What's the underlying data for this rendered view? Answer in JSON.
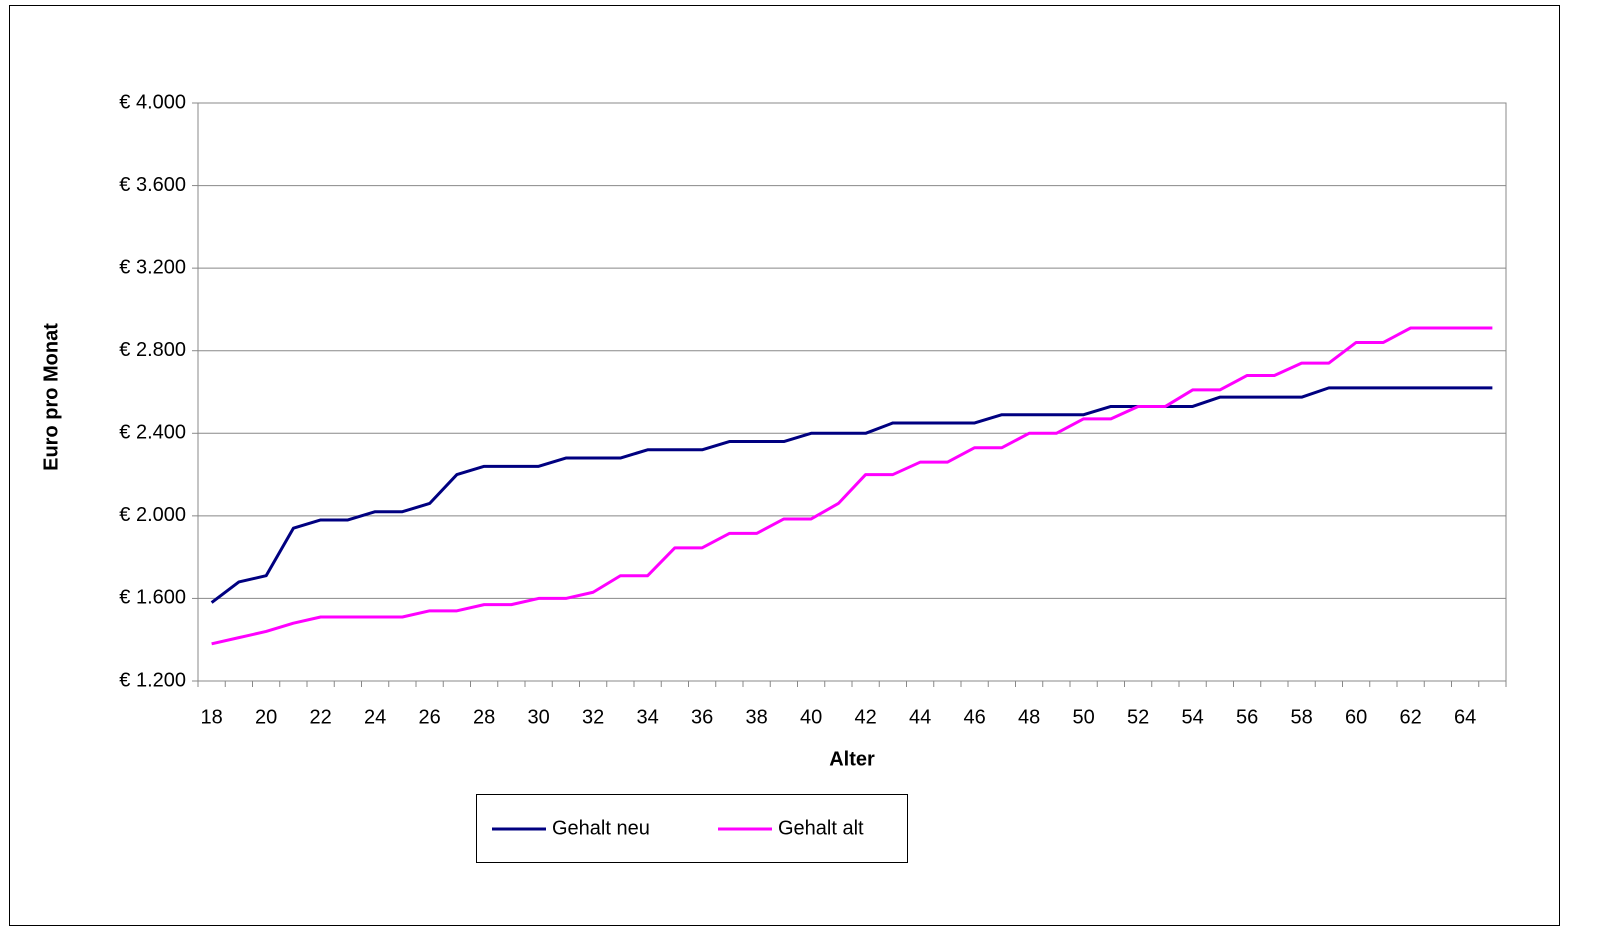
{
  "chart_data": {
    "type": "line",
    "x_label": "Alter",
    "y_label": "Euro pro Monat",
    "categories": [
      18,
      null,
      20,
      null,
      22,
      null,
      24,
      null,
      26,
      null,
      28,
      null,
      30,
      null,
      32,
      null,
      34,
      null,
      36,
      null,
      38,
      null,
      40,
      null,
      42,
      null,
      44,
      null,
      46,
      null,
      48,
      null,
      50,
      null,
      52,
      null,
      54,
      null,
      56,
      null,
      58,
      null,
      60,
      null,
      62,
      null,
      64,
      null
    ],
    "series": [
      {
        "name": "Gehalt neu",
        "color": "#000080",
        "values": [
          1580,
          1680,
          1710,
          1940,
          1980,
          1980,
          2020,
          2020,
          2060,
          2200,
          2240,
          2240,
          2240,
          2280,
          2280,
          2280,
          2320,
          2320,
          2320,
          2360,
          2360,
          2360,
          2400,
          2400,
          2400,
          2450,
          2450,
          2450,
          2450,
          2490,
          2490,
          2490,
          2490,
          2530,
          2530,
          2530,
          2530,
          2575,
          2575,
          2575,
          2575,
          2620,
          2620,
          2620,
          2620,
          2620,
          2620,
          2620
        ]
      },
      {
        "name": "Gehalt alt",
        "color": "#ff00ff",
        "values": [
          1380,
          1410,
          1440,
          1480,
          1510,
          1510,
          1510,
          1510,
          1540,
          1540,
          1570,
          1570,
          1600,
          1600,
          1630,
          1710,
          1710,
          1845,
          1845,
          1915,
          1915,
          1985,
          1985,
          2060,
          2200,
          2200,
          2260,
          2260,
          2330,
          2330,
          2400,
          2400,
          2470,
          2470,
          2530,
          2530,
          2610,
          2610,
          2680,
          2680,
          2740,
          2740,
          2840,
          2840,
          2910,
          2910,
          2910,
          2910
        ]
      }
    ],
    "ylim": [
      1200,
      4000
    ],
    "yticks": [
      {
        "value": 1200,
        "label": "€ 1.200"
      },
      {
        "value": 1600,
        "label": "€ 1.600"
      },
      {
        "value": 2000,
        "label": "€ 2.000"
      },
      {
        "value": 2400,
        "label": "€ 2.400"
      },
      {
        "value": 2800,
        "label": "€ 2.800"
      },
      {
        "value": 3200,
        "label": "€ 3.200"
      },
      {
        "value": 3600,
        "label": "€ 3.600"
      },
      {
        "value": 4000,
        "label": "€ 4.000"
      }
    ],
    "grid": true,
    "legend": "bottom"
  }
}
